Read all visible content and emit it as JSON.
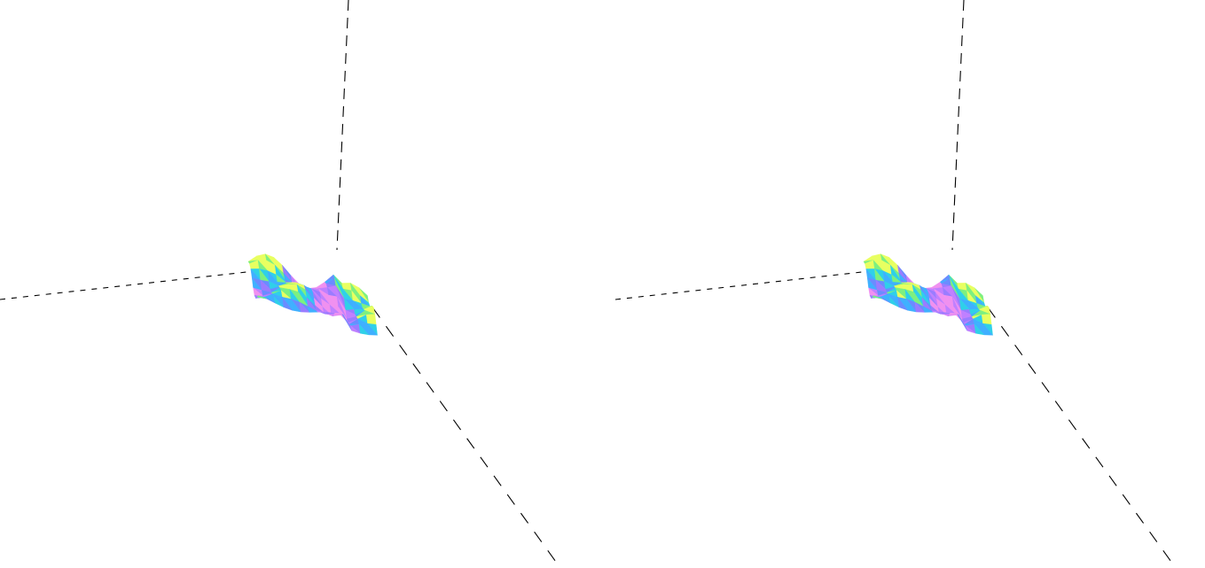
{
  "scene": {
    "views": [
      "left-eye",
      "right-eye"
    ],
    "background": "#ffffff",
    "axis_color": "#000000",
    "surface_palette": [
      "#f090f0",
      "#c080ff",
      "#9a7cff",
      "#6a8cff",
      "#3fb0ff",
      "#2fd0e8",
      "#7cf080",
      "#e8ff60"
    ]
  }
}
